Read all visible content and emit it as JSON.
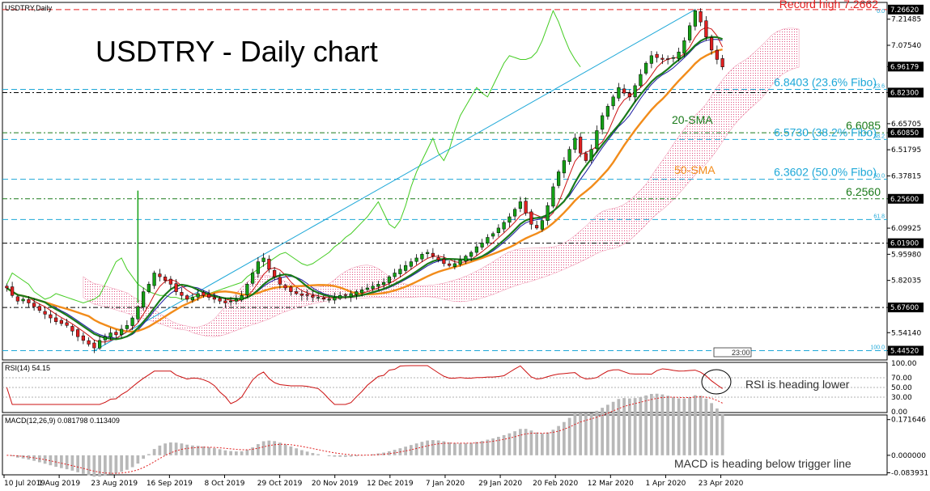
{
  "chart_data": {
    "type": "candlestick",
    "symbol_label": "USDTRY,Daily",
    "title": "USDTRY - Daily chart",
    "x_dates": [
      "10 Jul 2019",
      "1 Aug 2019",
      "23 Aug 2019",
      "16 Sep 2019",
      "8 Oct 2019",
      "29 Oct 2019",
      "20 Nov 2019",
      "12 Dec 2019",
      "7 Jan 2020",
      "29 Jan 2020",
      "20 Feb 2020",
      "12 Mar 2020",
      "1 Apr 2020",
      "23 Apr 2020"
    ],
    "ylim": [
      5.4,
      7.3
    ],
    "y_ticks": [
      "7.21485",
      "7.07540",
      "6.96179",
      "6.82300",
      "6.65705",
      "6.60850",
      "6.51795",
      "6.37815",
      "6.25600",
      "6.09925",
      "6.01900",
      "5.95980",
      "5.82035",
      "5.67600",
      "5.54140",
      "5.44520"
    ],
    "price_tags": [
      "7.26620",
      "6.96179",
      "6.82300",
      "6.60850",
      "6.25600",
      "6.01900",
      "5.67600",
      "5.44520"
    ],
    "close_series": {
      "start": "2019-07-10",
      "step_days": 1,
      "values": [
        5.78,
        5.74,
        5.71,
        5.72,
        5.7,
        5.68,
        5.66,
        5.64,
        5.62,
        5.6,
        5.59,
        5.58,
        5.55,
        5.52,
        5.5,
        5.48,
        5.46,
        5.5,
        5.52,
        5.54,
        5.53,
        5.56,
        5.58,
        5.62,
        5.68,
        5.76,
        5.8,
        5.86,
        5.84,
        5.82,
        5.8,
        5.76,
        5.74,
        5.72,
        5.73,
        5.75,
        5.74,
        5.73,
        5.72,
        5.71,
        5.7,
        5.71,
        5.72,
        5.74,
        5.8,
        5.86,
        5.92,
        5.94,
        5.88,
        5.84,
        5.8,
        5.78,
        5.76,
        5.75,
        5.74,
        5.74,
        5.73,
        5.73,
        5.72,
        5.72,
        5.73,
        5.74,
        5.74,
        5.75,
        5.76,
        5.77,
        5.78,
        5.79,
        5.8,
        5.81,
        5.84,
        5.86,
        5.88,
        5.9,
        5.92,
        5.94,
        5.96,
        5.97,
        5.95,
        5.93,
        5.91,
        5.9,
        5.91,
        5.93,
        5.95,
        5.97,
        6.0,
        6.02,
        6.05,
        6.07,
        6.1,
        6.13,
        6.16,
        6.2,
        6.24,
        6.18,
        6.12,
        6.1,
        6.14,
        6.22,
        6.32,
        6.4,
        6.46,
        6.52,
        6.58,
        6.5,
        6.46,
        6.52,
        6.62,
        6.7,
        6.75,
        6.8,
        6.85,
        6.82,
        6.8,
        6.86,
        6.92,
        6.98,
        7.02,
        7.01,
        7.0,
        7.0,
        7.01,
        7.04,
        7.1,
        7.18,
        7.26,
        7.2,
        7.12,
        7.05,
        7.0,
        6.96
      ]
    },
    "overlays": [
      {
        "name": "20-SMA",
        "color": "#1a7a1a"
      },
      {
        "name": "50-SMA",
        "color": "#f28c1a"
      }
    ],
    "levels": [
      {
        "value": 7.2662,
        "label": "Record high 7.2662",
        "color": "#e62020",
        "style": "dash"
      },
      {
        "value": 6.8403,
        "label": "6.8403 (23.6% Fibo)",
        "fibo": "23.6",
        "color": "#1ea8d8",
        "style": "dash"
      },
      {
        "value": 6.823,
        "label": "",
        "color": "#000000",
        "style": "dashdot"
      },
      {
        "value": 6.6085,
        "label": "6.6085",
        "color": "#1a7a1a",
        "style": "dashdot"
      },
      {
        "value": 6.573,
        "label": "6.5730 (38.2% Fibo)",
        "fibo": "38.2",
        "color": "#1ea8d8",
        "style": "dash"
      },
      {
        "value": 6.3602,
        "label": "6.3602 (50.0% Fibo)",
        "fibo": "50.0",
        "color": "#1ea8d8",
        "style": "dash"
      },
      {
        "value": 6.256,
        "label": "6.2560",
        "color": "#1a7a1a",
        "style": "dashdot"
      },
      {
        "value": 6.1455,
        "label": "",
        "fibo": "61.8",
        "color": "#1ea8d8",
        "style": "dash"
      },
      {
        "value": 6.019,
        "label": "",
        "color": "#000000",
        "style": "dashdot"
      },
      {
        "value": 5.676,
        "label": "",
        "color": "#000000",
        "style": "dashdot"
      },
      {
        "value": 5.4452,
        "label": "",
        "fibo": "100.0",
        "color": "#1ea8d8",
        "style": "dash"
      }
    ],
    "fibo_top_label": "0.0",
    "timer_label": "23:00",
    "labels": {
      "sma20": "20-SMA",
      "sma50": "50-SMA"
    },
    "rsi": {
      "label": "RSI(14) 54.15",
      "ylim": [
        0,
        100
      ],
      "y_ticks": [
        "100.00",
        "70.00",
        "50.00",
        "30.00",
        "0.00"
      ],
      "annotation": "RSI is heading lower"
    },
    "macd": {
      "label": "MACD(12,26,9) 0.081798 0.113409",
      "y_ticks": [
        "0.171646",
        "0.000000",
        "-0.083931"
      ],
      "annotation": "MACD is heading below trigger line"
    }
  }
}
